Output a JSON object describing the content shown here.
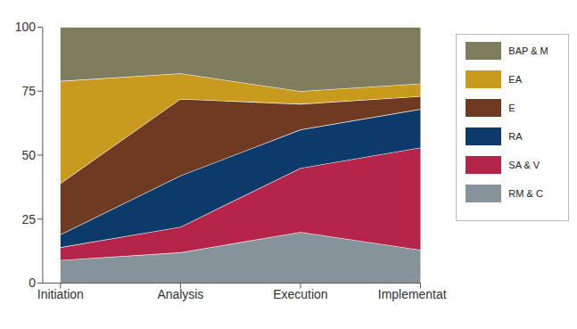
{
  "chart_data": {
    "type": "area",
    "stacked": true,
    "categories": [
      "Initiation",
      "Analysis",
      "Execution",
      "Implementation"
    ],
    "series": [
      {
        "name": "RM & C",
        "color": "#87939b",
        "values": [
          9,
          12,
          20,
          13
        ]
      },
      {
        "name": "SA & V",
        "color": "#b5254a",
        "values": [
          5,
          10,
          25,
          40
        ]
      },
      {
        "name": "RA",
        "color": "#0b3a6b",
        "values": [
          5,
          20,
          15,
          15
        ]
      },
      {
        "name": "E",
        "color": "#6e3a22",
        "values": [
          20,
          30,
          10,
          5
        ]
      },
      {
        "name": "EA",
        "color": "#c89a1e",
        "values": [
          40,
          10,
          5,
          5
        ]
      },
      {
        "name": "BAP & M",
        "color": "#807d5e",
        "values": [
          21,
          18,
          25,
          22
        ]
      }
    ],
    "ylim": [
      0,
      100
    ],
    "yticks": [
      0,
      25,
      50,
      75,
      100
    ],
    "grid": false,
    "legend": "right"
  }
}
